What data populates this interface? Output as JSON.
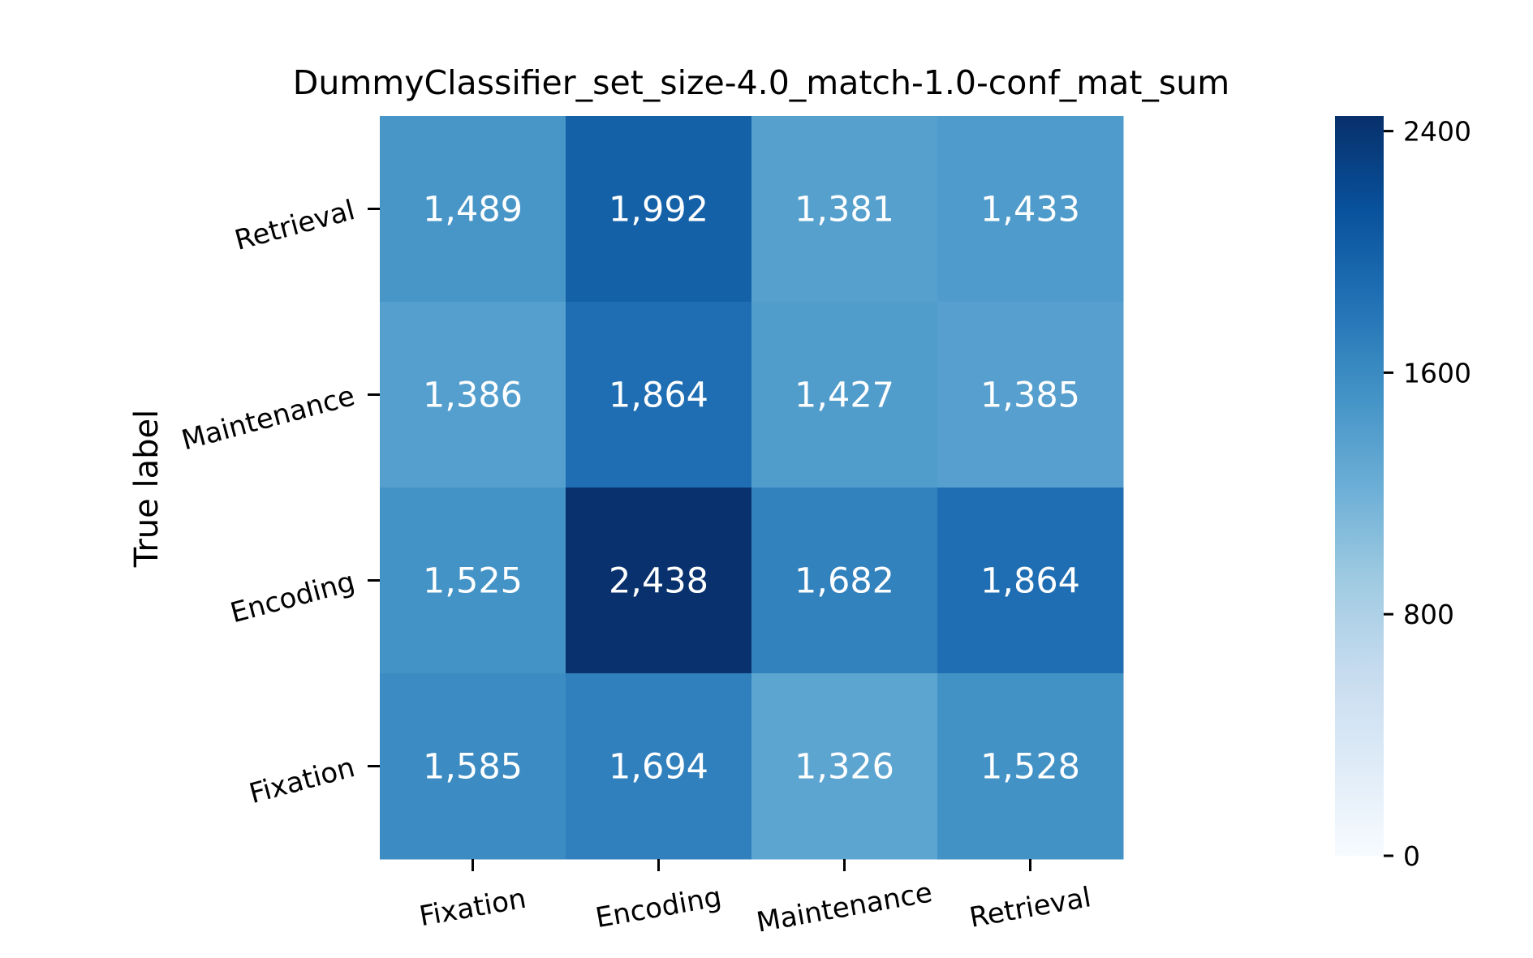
{
  "chart_data": {
    "type": "heatmap",
    "title": "DummyClassifier_set_size-4.0_match-1.0-conf_mat_sum",
    "ylabel": "True label",
    "xlabel": "",
    "x_categories": [
      "Fixation",
      "Encoding",
      "Maintenance",
      "Retrieval"
    ],
    "y_categories": [
      "Retrieval",
      "Maintenance",
      "Encoding",
      "Fixation"
    ],
    "values": [
      [
        1489,
        1992,
        1381,
        1433
      ],
      [
        1386,
        1864,
        1427,
        1385
      ],
      [
        1525,
        2438,
        1682,
        1864
      ],
      [
        1585,
        1694,
        1326,
        1528
      ]
    ],
    "value_labels": [
      [
        "1,489",
        "1,992",
        "1,381",
        "1,433"
      ],
      [
        "1,386",
        "1,864",
        "1,427",
        "1,385"
      ],
      [
        "1,525",
        "2,438",
        "1,682",
        "1,864"
      ],
      [
        "1,585",
        "1,694",
        "1,326",
        "1,528"
      ]
    ],
    "colormap": "Blues",
    "colorbar": {
      "range": [
        0,
        2450
      ],
      "ticks": [
        0,
        800,
        1600,
        2400
      ],
      "tick_labels": [
        "0",
        "800",
        "1600",
        "2400"
      ]
    },
    "grid": false
  }
}
